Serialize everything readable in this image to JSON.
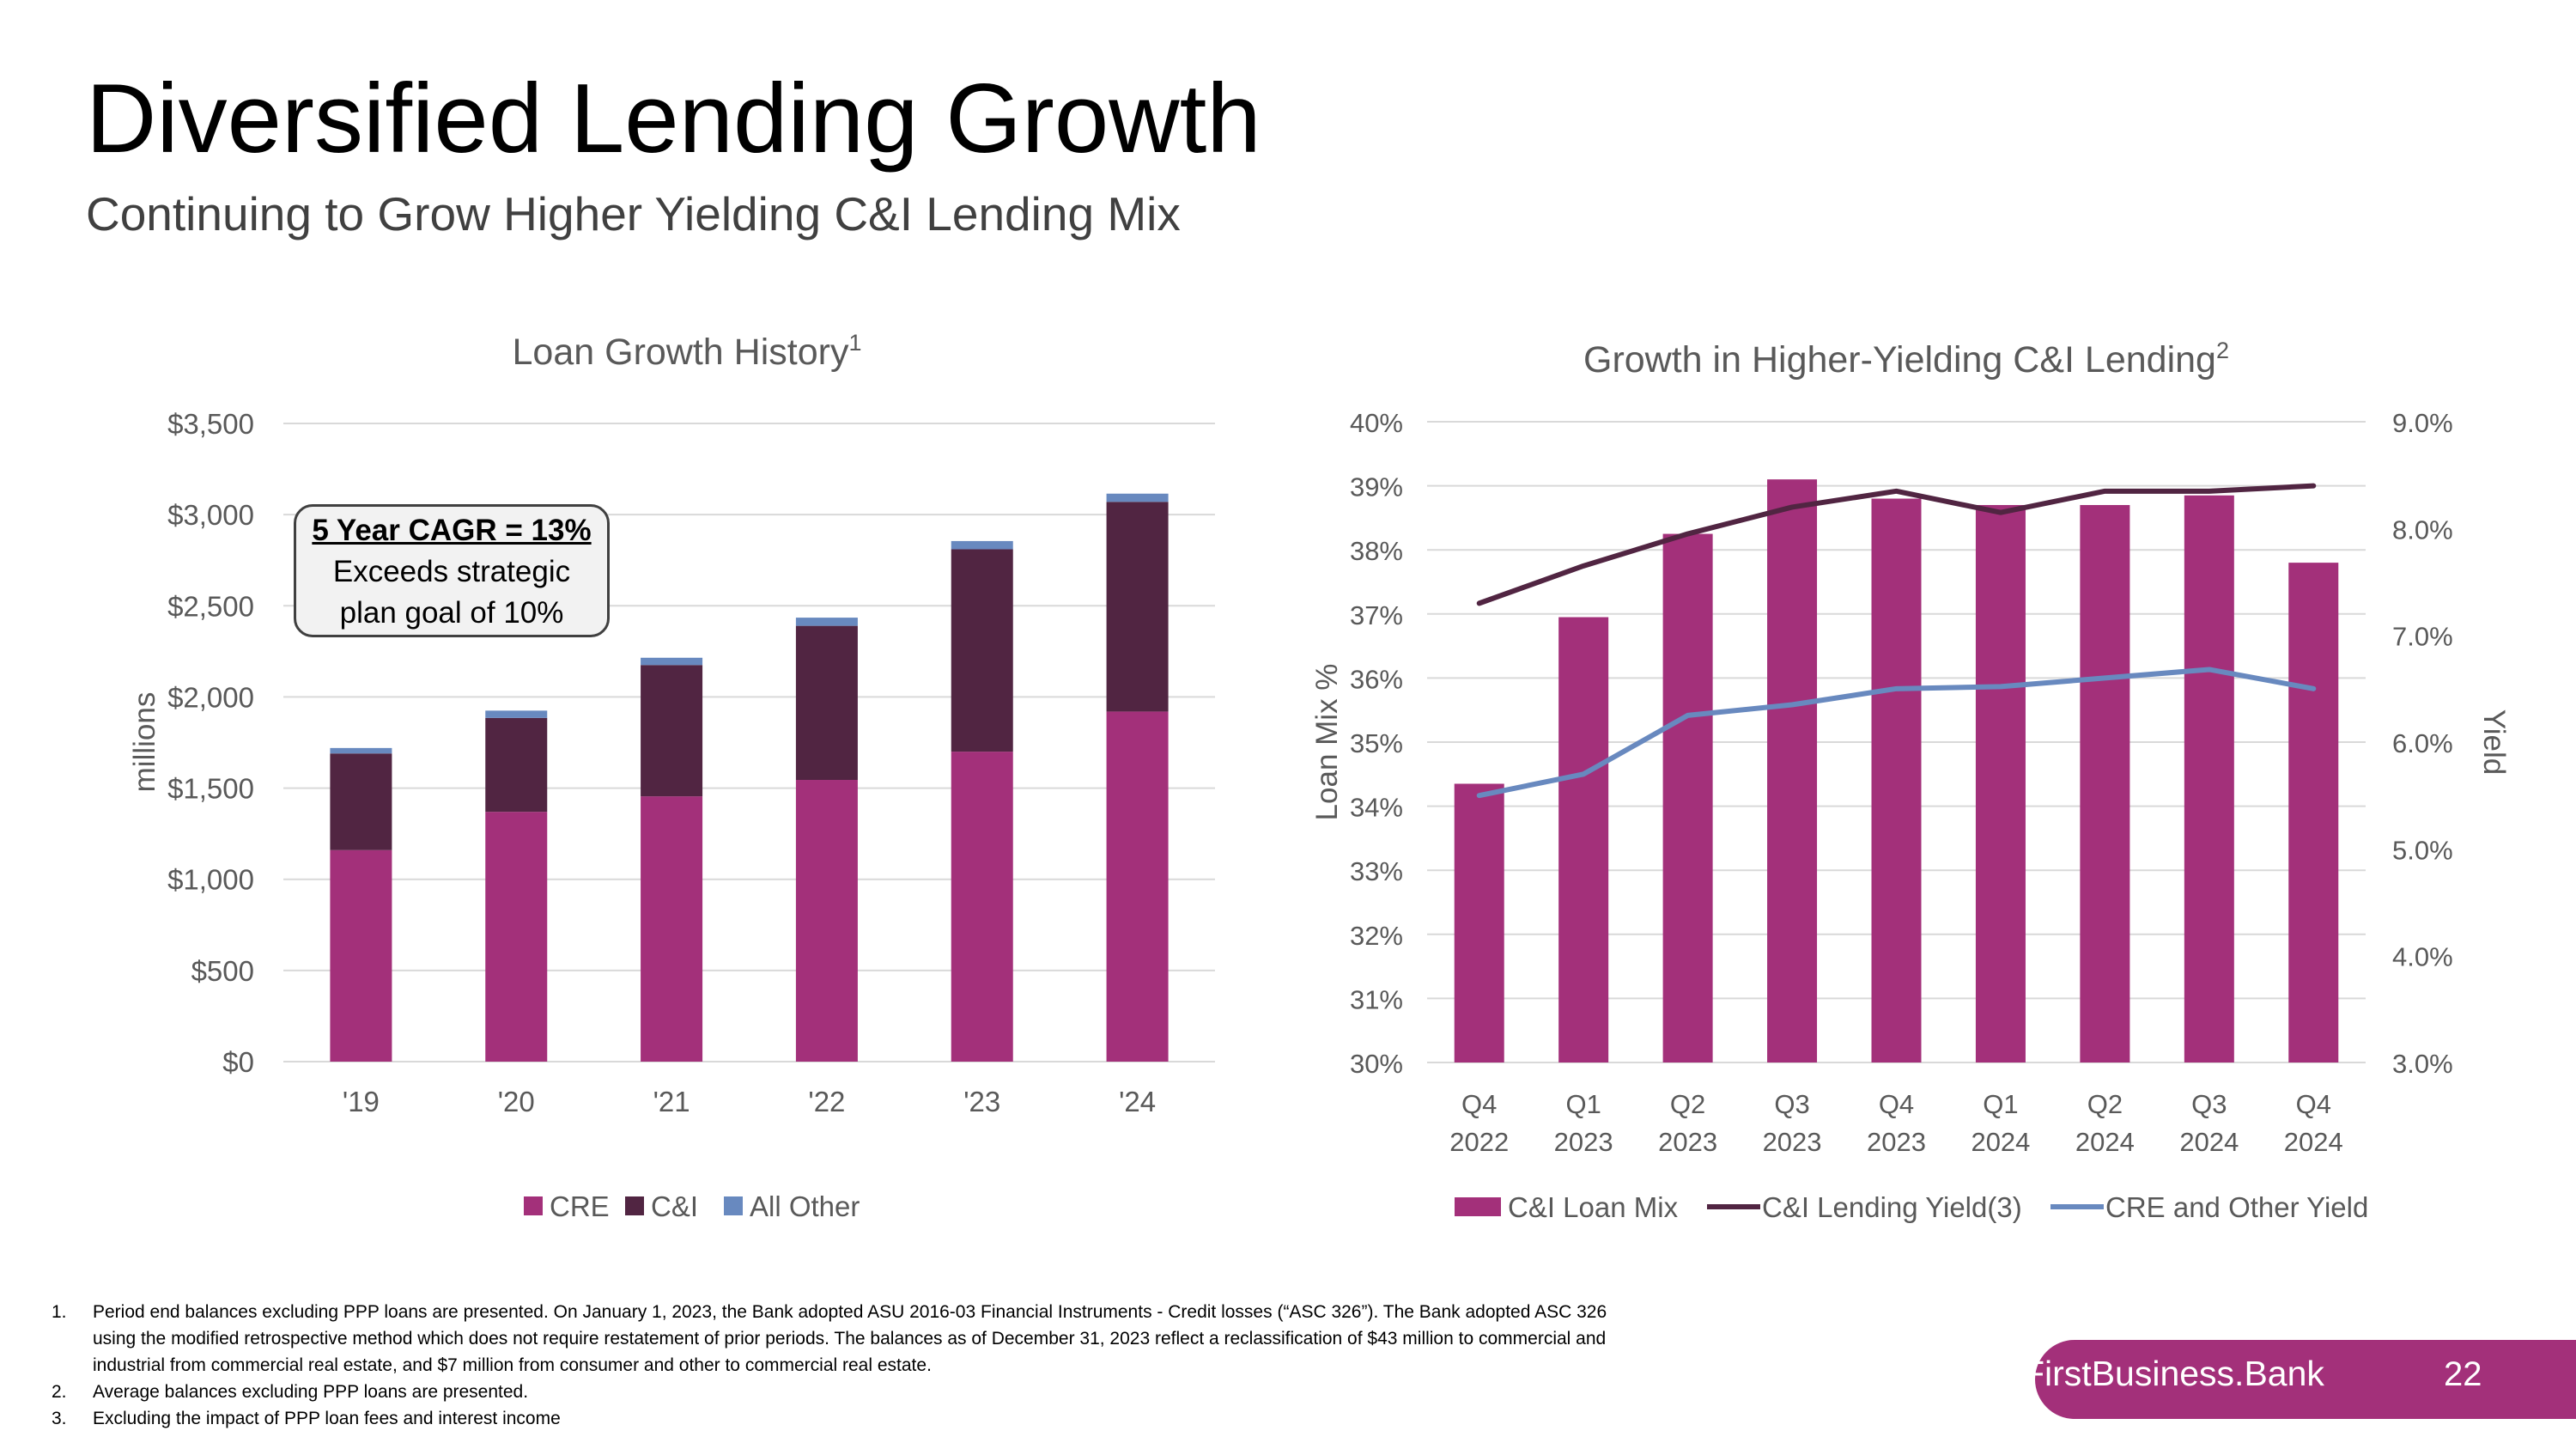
{
  "slide": {
    "title": "Diversified Lending Growth",
    "subtitle": "Continuing to Grow Higher Yielding C&I Lending Mix",
    "callout": {
      "headline": "5 Year CAGR = 13%",
      "line1": "Exceeds strategic",
      "line2": "plan goal of 10%"
    },
    "footnotes": [
      {
        "num": "1.",
        "text": "Period end balances excluding PPP loans are presented. On January 1, 2023, the Bank adopted ASU 2016-03 Financial Instruments - Credit losses (“ASC 326”). The Bank adopted ASC 326 using the modified retrospective method which does not require restatement of prior periods. The balances as of December 31, 2023 reflect a reclassification of $43 million to commercial and industrial from commercial real estate, and $7 million from consumer and other to commercial real estate."
      },
      {
        "num": "2.",
        "text": "Average balances excluding PPP loans are presented."
      },
      {
        "num": "3.",
        "text": "Excluding the impact of PPP loan fees and interest income"
      }
    ],
    "brand": "FirstBusiness.Bank",
    "page_number": "22"
  },
  "colors": {
    "cre": "#a3307a",
    "ci": "#512542",
    "other": "#6889bf",
    "ci_yield": "#512542",
    "cre_yield": "#6889bf",
    "grid": "#d9d9d9",
    "axis_text": "#595959",
    "brand_bg": "#a3307a"
  },
  "chart_data": [
    {
      "type": "bar",
      "stacked": true,
      "title": "Loan Growth History",
      "title_sup": "1",
      "ylabel": "millions",
      "xlabel": "",
      "categories": [
        "'19",
        "'20",
        "'21",
        "'22",
        "'23",
        "'24"
      ],
      "series": [
        {
          "name": "CRE",
          "values": [
            1160,
            1370,
            1455,
            1545,
            1700,
            1920
          ]
        },
        {
          "name": "C&I",
          "values": [
            530,
            515,
            720,
            845,
            1110,
            1150
          ]
        },
        {
          "name": "All Other",
          "values": [
            30,
            40,
            40,
            45,
            45,
            45
          ]
        }
      ],
      "ylim": [
        0,
        3500
      ],
      "yticks": [
        0,
        500,
        1000,
        1500,
        2000,
        2500,
        3000,
        3500
      ],
      "ytick_labels": [
        "$0",
        "$500",
        "$1,000",
        "$1,500",
        "$2,000",
        "$2,500",
        "$3,000",
        "$3,500"
      ],
      "grid": true,
      "legend": "bottom"
    },
    {
      "type": "bar",
      "combo": "bar+line",
      "title": "Growth in Higher-Yielding C&I Lending",
      "title_sup": "2",
      "ylabel": "Loan Mix %",
      "y2label": "Yield",
      "categories": [
        {
          "l1": "Q4",
          "l2": "2022"
        },
        {
          "l1": "Q1",
          "l2": "2023"
        },
        {
          "l1": "Q2",
          "l2": "2023"
        },
        {
          "l1": "Q3",
          "l2": "2023"
        },
        {
          "l1": "Q4",
          "l2": "2023"
        },
        {
          "l1": "Q1",
          "l2": "2024"
        },
        {
          "l1": "Q2",
          "l2": "2024"
        },
        {
          "l1": "Q3",
          "l2": "2024"
        },
        {
          "l1": "Q4",
          "l2": "2024"
        }
      ],
      "series": [
        {
          "name": "C&I Loan Mix",
          "axis": "left",
          "kind": "bar",
          "values": [
            34.35,
            36.95,
            38.25,
            39.1,
            38.8,
            38.7,
            38.7,
            38.85,
            37.8
          ]
        },
        {
          "name": "C&I Lending Yield(3)",
          "axis": "right",
          "kind": "line",
          "values": [
            7.3,
            7.65,
            7.95,
            8.2,
            8.35,
            8.15,
            8.35,
            8.35,
            8.4
          ]
        },
        {
          "name": "CRE and Other Yield",
          "axis": "right",
          "kind": "line",
          "values": [
            5.5,
            5.7,
            6.25,
            6.35,
            6.5,
            6.52,
            6.6,
            6.68,
            6.5
          ]
        }
      ],
      "ylim": [
        30,
        40
      ],
      "yticks": [
        30,
        31,
        32,
        33,
        34,
        35,
        36,
        37,
        38,
        39,
        40
      ],
      "ytick_labels": [
        "30%",
        "31%",
        "32%",
        "33%",
        "34%",
        "35%",
        "36%",
        "37%",
        "38%",
        "39%",
        "40%"
      ],
      "y2lim": [
        3,
        9
      ],
      "y2ticks": [
        3,
        4,
        5,
        6,
        7,
        8,
        9
      ],
      "y2tick_labels": [
        "3.0%",
        "4.0%",
        "5.0%",
        "6.0%",
        "7.0%",
        "8.0%",
        "9.0%"
      ],
      "grid": true,
      "legend": "bottom"
    }
  ]
}
